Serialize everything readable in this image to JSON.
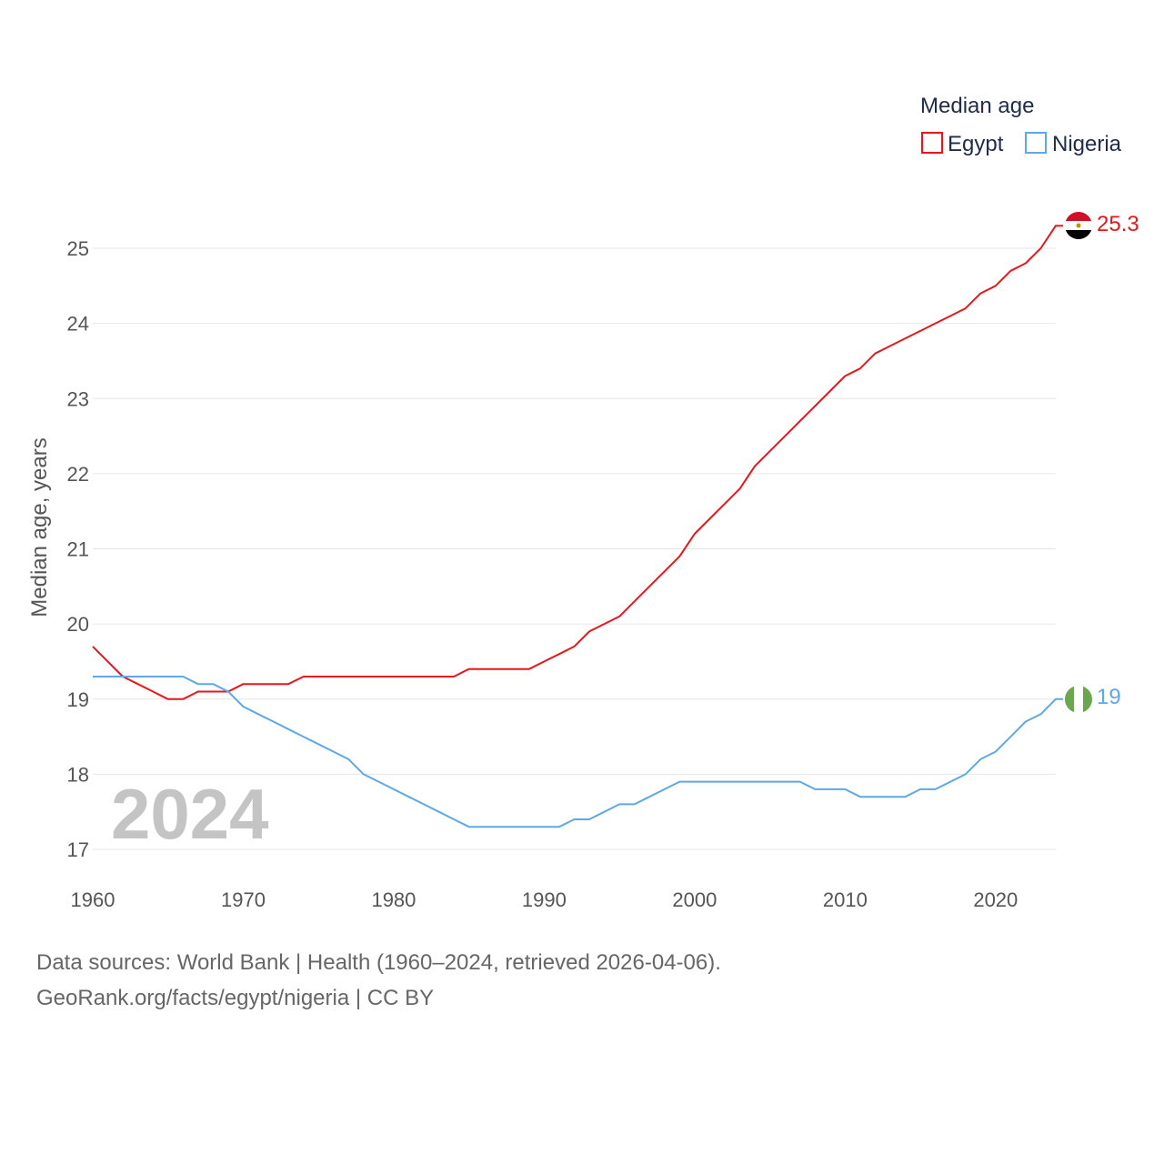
{
  "chart_data": {
    "type": "line",
    "title": "",
    "xlabel": "",
    "ylabel": "Median age, years",
    "xlim": [
      1960,
      2024
    ],
    "ylim": [
      17,
      25.6
    ],
    "x_ticks": [
      1960,
      1970,
      1980,
      1990,
      2000,
      2010,
      2020
    ],
    "y_ticks": [
      17,
      18,
      19,
      20,
      21,
      22,
      23,
      24,
      25
    ],
    "grid": true,
    "legend": {
      "title": "Median age",
      "position": "top-right"
    },
    "watermark_year": "2024",
    "x": [
      1960,
      1961,
      1962,
      1963,
      1964,
      1965,
      1966,
      1967,
      1968,
      1969,
      1970,
      1971,
      1972,
      1973,
      1974,
      1975,
      1976,
      1977,
      1978,
      1979,
      1980,
      1981,
      1982,
      1983,
      1984,
      1985,
      1986,
      1987,
      1988,
      1989,
      1990,
      1991,
      1992,
      1993,
      1994,
      1995,
      1996,
      1997,
      1998,
      1999,
      2000,
      2001,
      2002,
      2003,
      2004,
      2005,
      2006,
      2007,
      2008,
      2009,
      2010,
      2011,
      2012,
      2013,
      2014,
      2015,
      2016,
      2017,
      2018,
      2019,
      2020,
      2021,
      2022,
      2023,
      2024
    ],
    "series": [
      {
        "name": "Egypt",
        "color": "#e8161b",
        "end_label": "25.3",
        "flag": "egypt-flag-icon",
        "values": [
          19.7,
          19.5,
          19.3,
          19.2,
          19.1,
          19.0,
          19.0,
          19.1,
          19.1,
          19.1,
          19.2,
          19.2,
          19.2,
          19.2,
          19.3,
          19.3,
          19.3,
          19.3,
          19.3,
          19.3,
          19.3,
          19.3,
          19.3,
          19.3,
          19.3,
          19.4,
          19.4,
          19.4,
          19.4,
          19.4,
          19.5,
          19.6,
          19.7,
          19.9,
          20.0,
          20.1,
          20.3,
          20.5,
          20.7,
          20.9,
          21.2,
          21.4,
          21.6,
          21.8,
          22.1,
          22.3,
          22.5,
          22.7,
          22.9,
          23.1,
          23.3,
          23.4,
          23.6,
          23.7,
          23.8,
          23.9,
          24.0,
          24.1,
          24.2,
          24.4,
          24.5,
          24.7,
          24.8,
          25.0,
          25.3
        ]
      },
      {
        "name": "Nigeria",
        "color": "#5fa8e4",
        "end_label": "19",
        "flag": "nigeria-flag-icon",
        "values": [
          19.3,
          19.3,
          19.3,
          19.3,
          19.3,
          19.3,
          19.3,
          19.2,
          19.2,
          19.1,
          18.9,
          18.8,
          18.7,
          18.6,
          18.5,
          18.4,
          18.3,
          18.2,
          18.0,
          17.9,
          17.8,
          17.7,
          17.6,
          17.5,
          17.4,
          17.3,
          17.3,
          17.3,
          17.3,
          17.3,
          17.3,
          17.3,
          17.4,
          17.4,
          17.5,
          17.6,
          17.6,
          17.7,
          17.8,
          17.9,
          17.9,
          17.9,
          17.9,
          17.9,
          17.9,
          17.9,
          17.9,
          17.9,
          17.8,
          17.8,
          17.8,
          17.7,
          17.7,
          17.7,
          17.7,
          17.8,
          17.8,
          17.9,
          18.0,
          18.2,
          18.3,
          18.5,
          18.7,
          18.8,
          19.0
        ]
      }
    ]
  },
  "footer": {
    "source_line": "Data sources: World Bank | Health (1960–2024, retrieved 2026-04-06).",
    "url_line": "GeoRank.org/facts/egypt/nigeria | CC BY"
  }
}
